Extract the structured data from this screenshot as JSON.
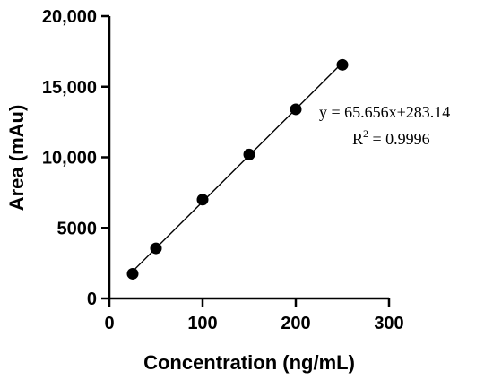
{
  "chart_data": {
    "type": "scatter",
    "xlabel": "Concentration (ng/mL)",
    "ylabel": "Area (mAu)",
    "xlim": [
      0,
      300
    ],
    "ylim": [
      0,
      20000
    ],
    "x_ticks": [
      0,
      100,
      200,
      300
    ],
    "x_tick_labels": [
      "0",
      "100",
      "200",
      "300"
    ],
    "y_ticks": [
      0,
      5000,
      10000,
      15000,
      20000
    ],
    "y_tick_labels": [
      "0",
      "5000",
      "10,000",
      "15,000",
      "20,000"
    ],
    "series": [
      {
        "x": [
          25,
          50,
          100,
          150,
          200,
          250
        ],
        "y": [
          1750,
          3550,
          7000,
          10200,
          13400,
          16550
        ]
      }
    ],
    "fit": {
      "slope": 65.656,
      "intercept": 283.14,
      "x_range": [
        25,
        250
      ]
    },
    "annotations": {
      "equation": "y = 65.656x+283.14",
      "r2_prefix": "R",
      "r2_sup": "2",
      "r2_value": " = 0.9996"
    },
    "grid": false,
    "legend": "none"
  }
}
